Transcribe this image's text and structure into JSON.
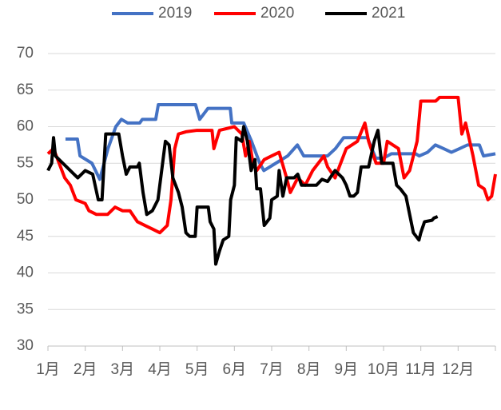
{
  "chart_data": {
    "type": "line",
    "xlim": [
      1,
      13
    ],
    "xticks": [
      {
        "value": 1,
        "label": "1月"
      },
      {
        "value": 2,
        "label": "2月"
      },
      {
        "value": 3,
        "label": "3月"
      },
      {
        "value": 4,
        "label": "4月"
      },
      {
        "value": 5,
        "label": "5月"
      },
      {
        "value": 6,
        "label": "6月"
      },
      {
        "value": 7,
        "label": "7月"
      },
      {
        "value": 8,
        "label": "8月"
      },
      {
        "value": 9,
        "label": "9月"
      },
      {
        "value": 10,
        "label": "10月"
      },
      {
        "value": 11,
        "label": "11月"
      },
      {
        "value": 12,
        "label": "12月"
      }
    ],
    "ylim": [
      30,
      70
    ],
    "yticks": [
      30,
      35,
      40,
      45,
      50,
      55,
      60,
      65,
      70
    ],
    "grid": true,
    "legend": "top",
    "series": [
      {
        "name": "2019",
        "color": "#4472c4",
        "x": [
          1.47,
          1.79,
          1.86,
          2.18,
          2.39,
          2.61,
          2.82,
          2.97,
          3.14,
          3.46,
          3.53,
          3.89,
          3.96,
          4.96,
          5.07,
          5.29,
          5.89,
          5.93,
          6.25,
          6.46,
          6.68,
          6.79,
          7.11,
          7.43,
          7.69,
          7.86,
          8.5,
          8.71,
          8.93,
          9.25,
          9.57,
          9.79,
          10.0,
          10.21,
          10.86,
          10.96,
          11.18,
          11.39,
          11.61,
          11.82,
          12.04,
          12.25,
          12.57,
          12.68,
          13.0
        ],
        "values": [
          58.3,
          58.3,
          56,
          55,
          52.8,
          57,
          60,
          61,
          60.5,
          60.5,
          61,
          61,
          63,
          63,
          61,
          62.5,
          62.5,
          60.5,
          60.5,
          58,
          55,
          54,
          55,
          56,
          57.5,
          56,
          56,
          57,
          58.5,
          58.5,
          58.5,
          55.7,
          55.7,
          56.3,
          56.3,
          56,
          56.5,
          57.5,
          57,
          56.5,
          57,
          57.5,
          57.5,
          56,
          56.3
        ]
      },
      {
        "name": "2020",
        "color": "#ff0000",
        "x": [
          1.0,
          1.15,
          1.3,
          1.45,
          1.6,
          1.75,
          2.0,
          2.1,
          2.3,
          2.6,
          2.8,
          3.0,
          3.2,
          3.4,
          3.6,
          3.8,
          4.0,
          4.2,
          4.3,
          4.4,
          4.5,
          4.7,
          5.0,
          5.4,
          5.45,
          5.6,
          6.0,
          6.2,
          6.3,
          6.4,
          6.5,
          6.6,
          6.8,
          7.0,
          7.2,
          7.4,
          7.5,
          7.7,
          7.9,
          8.1,
          8.4,
          8.5,
          8.7,
          8.85,
          9.0,
          9.3,
          9.5,
          9.6,
          9.8,
          10.0,
          10.1,
          10.4,
          10.55,
          10.7,
          10.8,
          10.9,
          11.0,
          11.4,
          11.5,
          12.0,
          12.1,
          12.2,
          12.4,
          12.55,
          12.7,
          12.8,
          12.9,
          13.0
        ],
        "values": [
          56.3,
          57,
          55,
          53,
          52,
          50,
          49.5,
          48.5,
          48,
          48,
          49,
          48.5,
          48.5,
          47,
          46.5,
          46,
          45.5,
          46.5,
          50,
          57,
          59,
          59.3,
          59.5,
          59.5,
          57,
          59.5,
          60,
          59,
          56,
          58,
          55,
          54,
          55.5,
          56,
          56.5,
          53,
          51,
          53,
          52,
          54,
          56,
          54.5,
          53,
          55,
          57,
          58,
          60.5,
          58,
          55,
          55,
          58,
          57,
          53,
          54,
          56,
          58,
          63.5,
          63.5,
          64,
          64,
          59,
          60.5,
          56,
          52,
          51.5,
          50,
          50.5,
          53.5
        ]
      },
      {
        "name": "2021",
        "color": "#000000",
        "x": [
          1.0,
          1.1,
          1.15,
          1.2,
          1.4,
          1.6,
          1.8,
          2.0,
          2.2,
          2.35,
          2.45,
          2.55,
          2.9,
          3.0,
          3.1,
          3.2,
          3.4,
          3.45,
          3.55,
          3.65,
          3.8,
          3.95,
          4.05,
          4.15,
          4.25,
          4.35,
          4.5,
          4.6,
          4.7,
          4.8,
          4.95,
          5.0,
          5.3,
          5.35,
          5.45,
          5.5,
          5.6,
          5.7,
          5.85,
          5.9,
          6.0,
          6.05,
          6.2,
          6.25,
          6.35,
          6.45,
          6.55,
          6.6,
          6.7,
          6.8,
          6.95,
          7.0,
          7.15,
          7.2,
          7.3,
          7.4,
          7.6,
          7.7,
          7.8,
          8.2,
          8.35,
          8.5,
          8.7,
          8.9,
          9.0,
          9.1,
          9.2,
          9.3,
          9.4,
          9.6,
          9.75,
          9.85,
          9.95,
          10.25,
          10.35,
          10.45,
          10.6,
          10.7,
          10.8,
          10.95,
          11.0,
          11.1,
          11.3,
          11.35,
          11.45
        ],
        "values": [
          54,
          55,
          58.5,
          56,
          55,
          54,
          53,
          54,
          53.5,
          50,
          50,
          59,
          59,
          56,
          53.5,
          54.5,
          54.5,
          55,
          51,
          48,
          48.5,
          50,
          54,
          58,
          57.5,
          53,
          51,
          49,
          45.5,
          45,
          45,
          49,
          49,
          47,
          46,
          41.2,
          43,
          44.5,
          45,
          50,
          52,
          58.5,
          58,
          60,
          58,
          54,
          55.5,
          51.5,
          51.5,
          46.5,
          47.5,
          50,
          50.5,
          54,
          50.5,
          53,
          53,
          53.5,
          52,
          52,
          52.8,
          52.5,
          54,
          53,
          52,
          50.5,
          50.5,
          51,
          54.5,
          54.5,
          58,
          59.5,
          55,
          55,
          52,
          51.5,
          50.5,
          48,
          45.5,
          44.5,
          45.5,
          47,
          47.2,
          47.5,
          47.7
        ]
      }
    ]
  }
}
